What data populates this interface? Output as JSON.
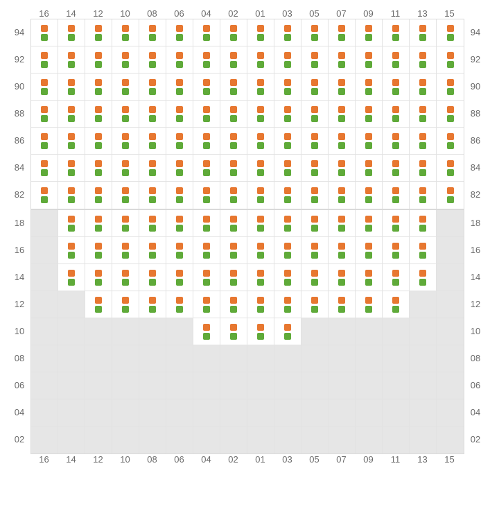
{
  "colors": {
    "orange": "#e77730",
    "green": "#5faa39",
    "grid_border": "#e2e2e2",
    "outer_border": "#d9d9d9",
    "active_bg": "#ffffff",
    "inactive_bg": "#e6e6e6",
    "label_color": "#6b6b6b"
  },
  "columns": [
    "16",
    "14",
    "12",
    "10",
    "08",
    "06",
    "04",
    "02",
    "01",
    "03",
    "05",
    "07",
    "09",
    "11",
    "13",
    "15"
  ],
  "section1": {
    "show_top_columns": true,
    "show_bottom_columns": false,
    "rows": [
      {
        "label": "94",
        "cells": [
          1,
          1,
          1,
          1,
          1,
          1,
          1,
          1,
          1,
          1,
          1,
          1,
          1,
          1,
          1,
          1
        ]
      },
      {
        "label": "92",
        "cells": [
          1,
          1,
          1,
          1,
          1,
          1,
          1,
          1,
          1,
          1,
          1,
          1,
          1,
          1,
          1,
          1
        ]
      },
      {
        "label": "90",
        "cells": [
          1,
          1,
          1,
          1,
          1,
          1,
          1,
          1,
          1,
          1,
          1,
          1,
          1,
          1,
          1,
          1
        ]
      },
      {
        "label": "88",
        "cells": [
          1,
          1,
          1,
          1,
          1,
          1,
          1,
          1,
          1,
          1,
          1,
          1,
          1,
          1,
          1,
          1
        ]
      },
      {
        "label": "86",
        "cells": [
          1,
          1,
          1,
          1,
          1,
          1,
          1,
          1,
          1,
          1,
          1,
          1,
          1,
          1,
          1,
          1
        ]
      },
      {
        "label": "84",
        "cells": [
          1,
          1,
          1,
          1,
          1,
          1,
          1,
          1,
          1,
          1,
          1,
          1,
          1,
          1,
          1,
          1
        ]
      },
      {
        "label": "82",
        "cells": [
          1,
          1,
          1,
          1,
          1,
          1,
          1,
          1,
          1,
          1,
          1,
          1,
          1,
          1,
          1,
          1
        ]
      }
    ]
  },
  "section2": {
    "show_top_columns": false,
    "show_bottom_columns": true,
    "rows": [
      {
        "label": "18",
        "cells": [
          0,
          1,
          1,
          1,
          1,
          1,
          1,
          1,
          1,
          1,
          1,
          1,
          1,
          1,
          1,
          0
        ]
      },
      {
        "label": "16",
        "cells": [
          0,
          1,
          1,
          1,
          1,
          1,
          1,
          1,
          1,
          1,
          1,
          1,
          1,
          1,
          1,
          0
        ]
      },
      {
        "label": "14",
        "cells": [
          0,
          1,
          1,
          1,
          1,
          1,
          1,
          1,
          1,
          1,
          1,
          1,
          1,
          1,
          1,
          0
        ]
      },
      {
        "label": "12",
        "cells": [
          0,
          0,
          1,
          1,
          1,
          1,
          1,
          1,
          1,
          1,
          1,
          1,
          1,
          1,
          0,
          0
        ]
      },
      {
        "label": "10",
        "cells": [
          0,
          0,
          0,
          0,
          0,
          0,
          1,
          1,
          1,
          1,
          0,
          0,
          0,
          0,
          0,
          0
        ]
      },
      {
        "label": "08",
        "cells": [
          0,
          0,
          0,
          0,
          0,
          0,
          0,
          0,
          0,
          0,
          0,
          0,
          0,
          0,
          0,
          0
        ]
      },
      {
        "label": "06",
        "cells": [
          0,
          0,
          0,
          0,
          0,
          0,
          0,
          0,
          0,
          0,
          0,
          0,
          0,
          0,
          0,
          0
        ]
      },
      {
        "label": "04",
        "cells": [
          0,
          0,
          0,
          0,
          0,
          0,
          0,
          0,
          0,
          0,
          0,
          0,
          0,
          0,
          0,
          0
        ]
      },
      {
        "label": "02",
        "cells": [
          0,
          0,
          0,
          0,
          0,
          0,
          0,
          0,
          0,
          0,
          0,
          0,
          0,
          0,
          0,
          0
        ]
      }
    ]
  }
}
